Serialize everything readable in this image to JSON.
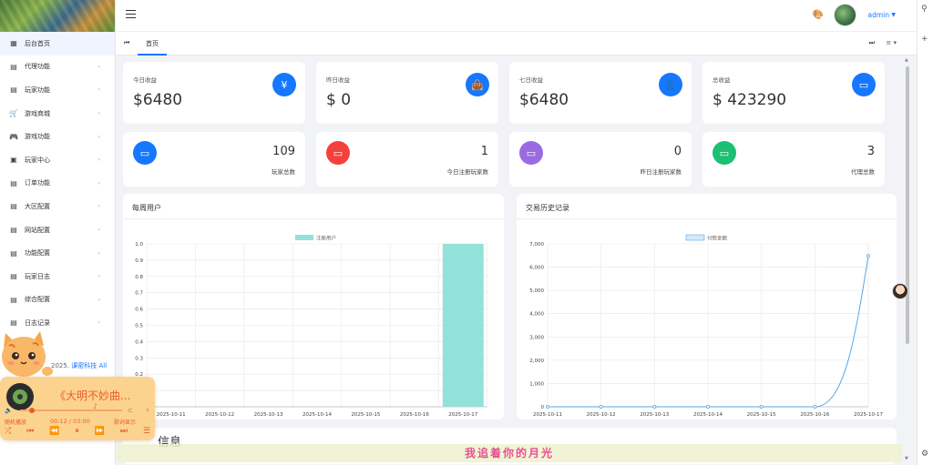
{
  "sidebar": {
    "items": [
      {
        "label": "后台首页",
        "icon": "dashboard-icon",
        "has_arrow": false
      },
      {
        "label": "代理功能",
        "icon": "list-icon",
        "has_arrow": true
      },
      {
        "label": "玩家功能",
        "icon": "list-icon",
        "has_arrow": true
      },
      {
        "label": "游戏商城",
        "icon": "cart-icon",
        "has_arrow": true
      },
      {
        "label": "游戏功能",
        "icon": "gamepad-icon",
        "has_arrow": true
      },
      {
        "label": "玩家中心",
        "icon": "user-card-icon",
        "has_arrow": true
      },
      {
        "label": "订单功能",
        "icon": "list-icon",
        "has_arrow": true
      },
      {
        "label": "大区配置",
        "icon": "list-icon",
        "has_arrow": true
      },
      {
        "label": "网站配置",
        "icon": "list-icon",
        "has_arrow": true
      },
      {
        "label": "功能配置",
        "icon": "list-icon",
        "has_arrow": true
      },
      {
        "label": "玩家日志",
        "icon": "list-icon",
        "has_arrow": true
      },
      {
        "label": "综合配置",
        "icon": "list-icon",
        "has_arrow": true
      },
      {
        "label": "日志记录",
        "icon": "list-icon",
        "has_arrow": true
      }
    ],
    "copyright_prefix": "2025.",
    "copyright_link": "课密科技 All"
  },
  "header": {
    "username": "admin"
  },
  "tabs": {
    "home_label": "首页"
  },
  "stats": [
    {
      "label": "今日收益",
      "value": "$6480",
      "icon": "yuan-icon",
      "color": "#1677ff"
    },
    {
      "label": "昨日收益",
      "value": "$ 0",
      "icon": "shopping-bag-icon",
      "color": "#1677ff"
    },
    {
      "label": "七日收益",
      "value": "$6480",
      "icon": "user-icon",
      "color": "#1677ff"
    },
    {
      "label": "总收益",
      "value": "$ 423290",
      "icon": "message-icon",
      "color": "#1677ff"
    }
  ],
  "counts": [
    {
      "label": "玩家总数",
      "value": "109",
      "icon": "message-icon",
      "color": "#1677ff"
    },
    {
      "label": "今日注册玩家数",
      "value": "1",
      "icon": "message-icon",
      "color": "#f5413c"
    },
    {
      "label": "昨日注册玩家数",
      "value": "0",
      "icon": "message-icon",
      "color": "#9a6be0"
    },
    {
      "label": "代理总数",
      "value": "3",
      "icon": "message-icon",
      "color": "#1dbf73"
    }
  ],
  "chart_data": [
    {
      "type": "bar",
      "title": "每周用户",
      "categories": [
        "2025-10-11",
        "2025-10-12",
        "2025-10-13",
        "2025-10-14",
        "2025-10-15",
        "2025-10-16",
        "2025-10-17"
      ],
      "series": [
        {
          "name": "注册用户",
          "values": [
            0,
            0,
            0,
            0,
            0,
            0,
            1
          ],
          "color": "#92e2d9"
        }
      ],
      "ylim": [
        0,
        1.0
      ],
      "yticks": [
        "0",
        "0.1",
        "0.2",
        "0.3",
        "0.4",
        "0.5",
        "0.6",
        "0.7",
        "0.8",
        "0.9",
        "1.0"
      ],
      "grid": true,
      "legend": "top-center"
    },
    {
      "type": "line",
      "title": "交易历史记录",
      "categories": [
        "2025-10-11",
        "2025-10-12",
        "2025-10-13",
        "2025-10-14",
        "2025-10-15",
        "2025-10-16",
        "2025-10-17"
      ],
      "series": [
        {
          "name": "付款金额",
          "values": [
            0,
            0,
            0,
            0,
            0,
            0,
            6480
          ],
          "color": "#5aa5e6"
        }
      ],
      "ylim": [
        0,
        7000
      ],
      "yticks": [
        "0",
        "1,000",
        "2,000",
        "3,000",
        "4,000",
        "5,000",
        "6,000",
        "7,000"
      ],
      "grid": true,
      "legend": "top-center"
    }
  ],
  "info_section": {
    "title_visible": "信息"
  },
  "player": {
    "song_title": "《大明不妙曲...",
    "mode_label": "随机播放",
    "time": "00:12 / 03:00",
    "lyric_toggle": "歌词显示"
  },
  "lyric_banner": "我追着你的月光"
}
